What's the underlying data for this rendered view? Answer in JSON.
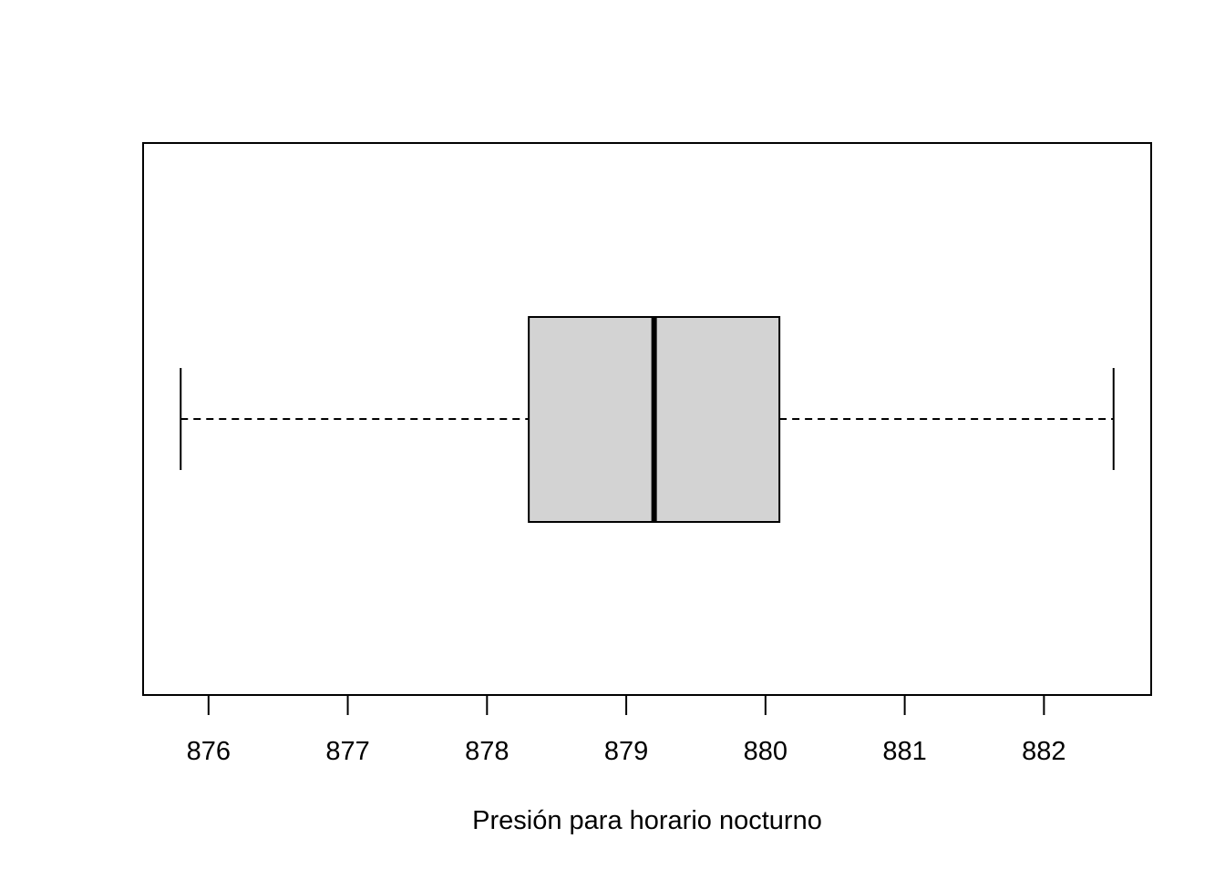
{
  "chart_data": {
    "type": "boxplot",
    "orientation": "horizontal",
    "xlabel": "Presión para horario nocturno",
    "xlim": [
      875.53,
      882.77
    ],
    "ticks": [
      876,
      877,
      878,
      879,
      880,
      881,
      882
    ],
    "tick_labels": [
      "876",
      "877",
      "878",
      "879",
      "880",
      "881",
      "882"
    ],
    "box": {
      "whisker_low": 875.8,
      "q1": 878.3,
      "median": 879.2,
      "q3": 880.1,
      "whisker_high": 882.5
    },
    "box_fill": "#d3d3d3",
    "line_color": "#000000"
  }
}
